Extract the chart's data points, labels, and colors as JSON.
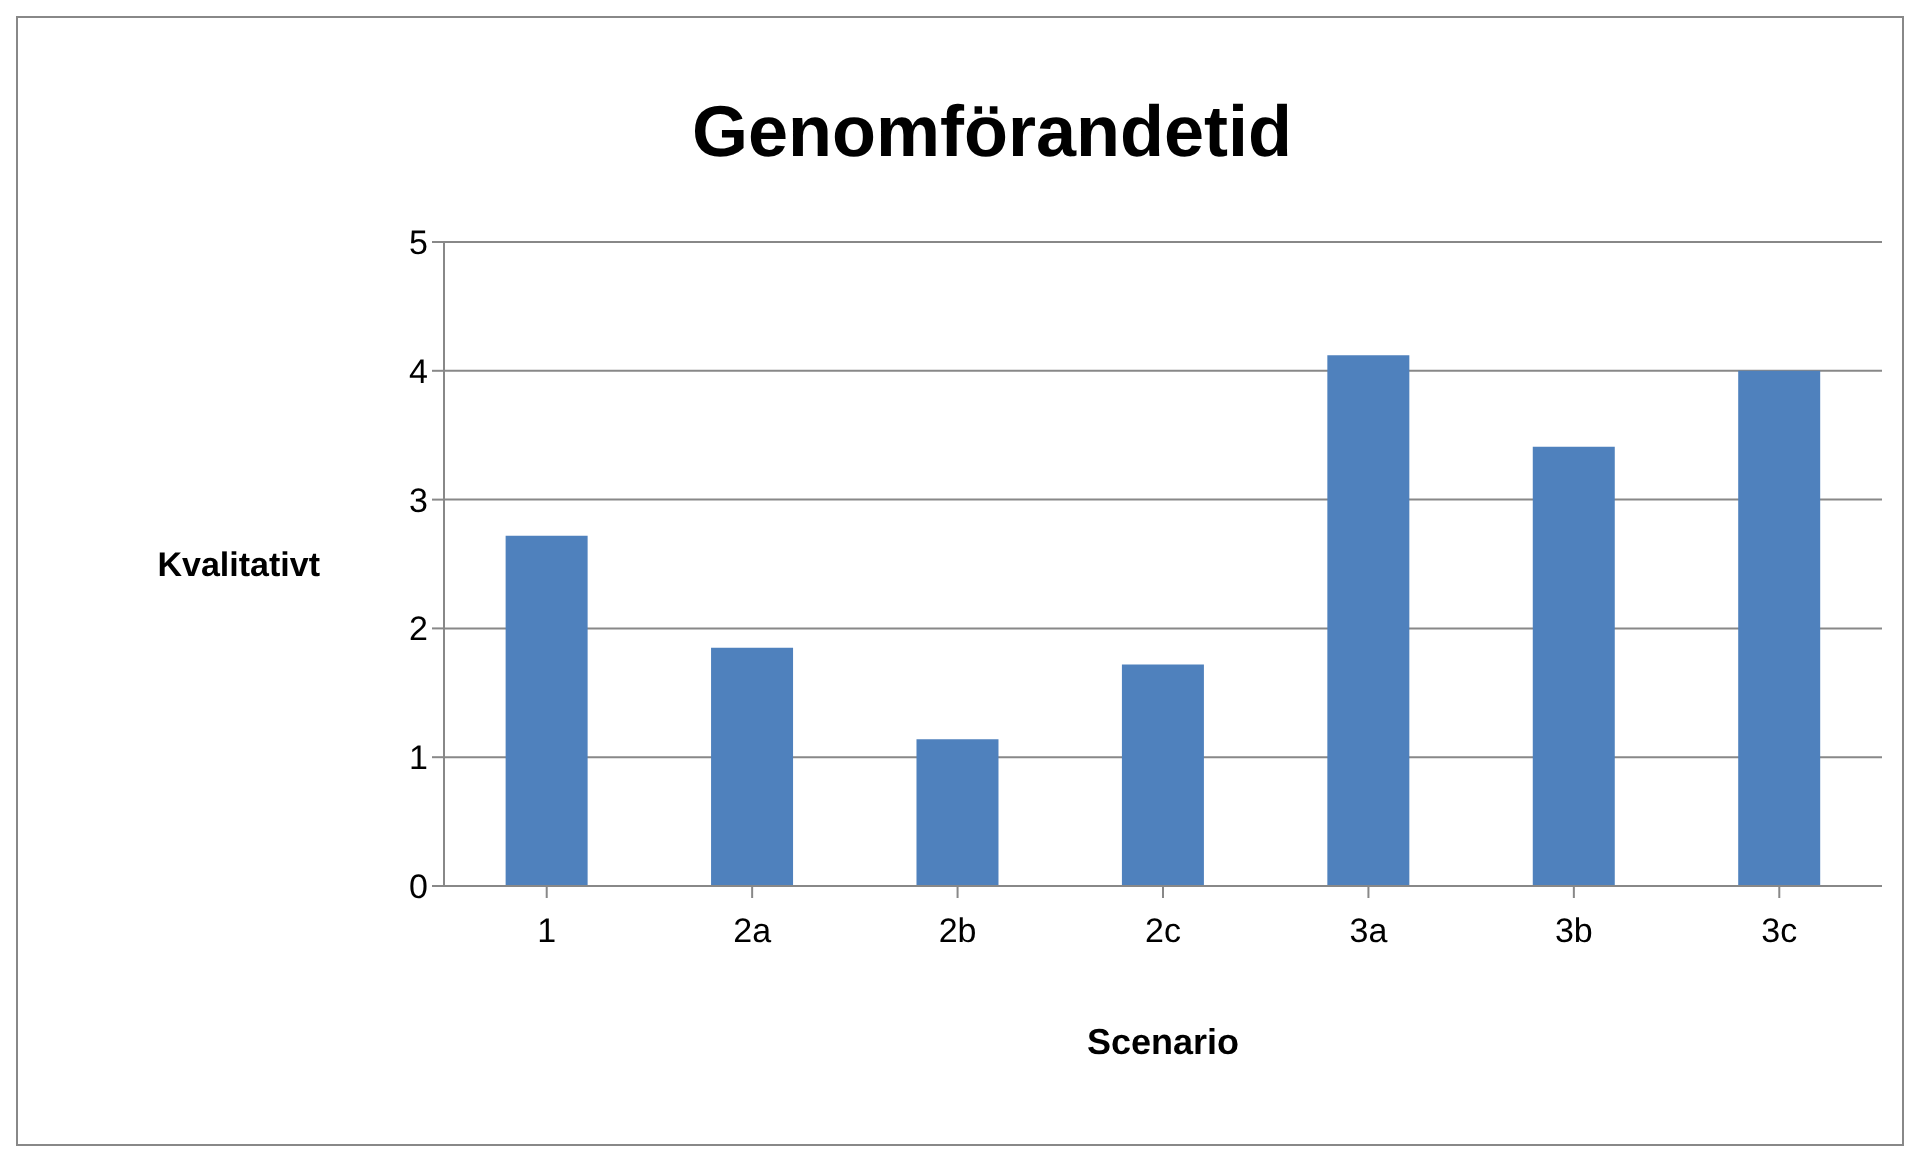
{
  "chart_data": {
    "type": "bar",
    "title": "Genomförandetid",
    "xlabel": "Scenario",
    "ylabel": "Kvalitativt",
    "categories": [
      "1",
      "2a",
      "2b",
      "2c",
      "3a",
      "3b",
      "3c"
    ],
    "values": [
      2.72,
      1.85,
      1.14,
      1.72,
      4.12,
      3.41,
      4.0
    ],
    "color": "#4f81bd",
    "ylim": [
      0,
      5
    ],
    "yticks": [
      0,
      1,
      2,
      3,
      4,
      5
    ],
    "grid": "y",
    "legend": false
  }
}
